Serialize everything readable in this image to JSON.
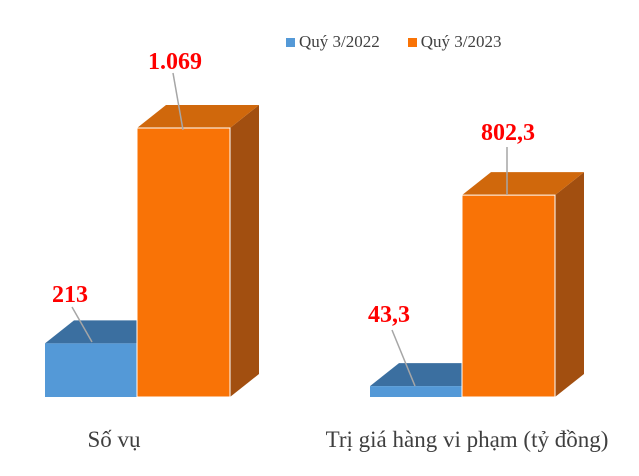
{
  "chart_data": {
    "type": "bar",
    "variant": "3d-clustered-column",
    "title": "",
    "categories": [
      "Số vụ",
      "Trị giá hàng vi phạm (tỷ đồng)"
    ],
    "series": [
      {
        "name": "Quý 3/2022",
        "values": [
          213,
          43.3
        ],
        "data_labels": [
          "213",
          "43,3"
        ],
        "colors": {
          "front": "#5499d7",
          "top": "#3b6fa0"
        }
      },
      {
        "name": "Quý 3/2023",
        "values": [
          1069,
          802.3
        ],
        "data_labels": [
          "1.069",
          "802,3"
        ],
        "colors": {
          "front": "#f97306",
          "top": "#d0680c",
          "side": "#a24f10"
        }
      }
    ],
    "legend": {
      "position": "top"
    },
    "data_label_color": "#ff0000",
    "leader_line_color": "#a6a6a6",
    "text_color": "#3f3f3f",
    "background": "#ffffff",
    "value_axis": {
      "visible": false,
      "implied_max": 1069
    },
    "gridlines": false
  }
}
